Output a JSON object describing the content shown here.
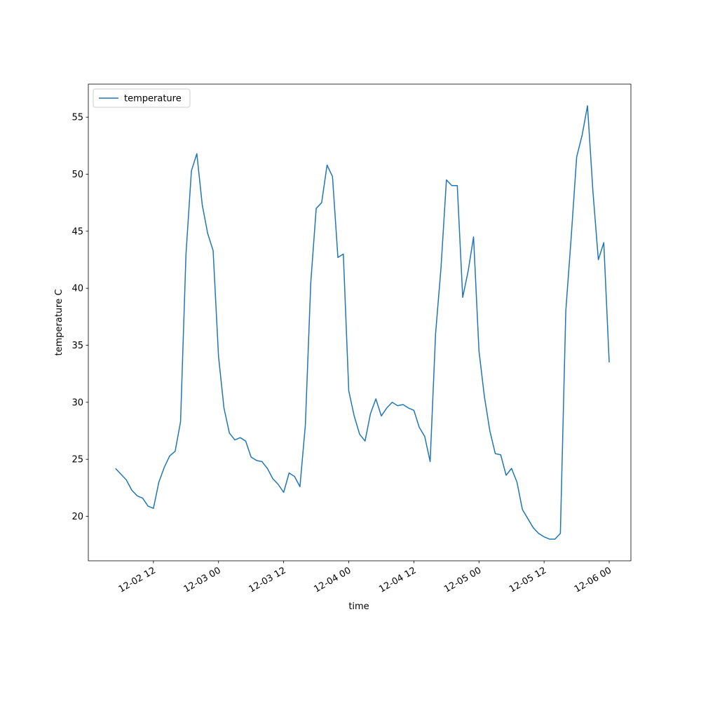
{
  "chart_data": {
    "type": "line",
    "x_label": "time",
    "y_label": "temperature C",
    "x": [
      "12-02 05",
      "12-02 06",
      "12-02 07",
      "12-02 08",
      "12-02 09",
      "12-02 10",
      "12-02 11",
      "12-02 12",
      "12-02 13",
      "12-02 14",
      "12-02 15",
      "12-02 16",
      "12-02 17",
      "12-02 18",
      "12-02 19",
      "12-02 20",
      "12-02 21",
      "12-02 22",
      "12-02 23",
      "12-03 00",
      "12-03 01",
      "12-03 02",
      "12-03 03",
      "12-03 04",
      "12-03 05",
      "12-03 06",
      "12-03 07",
      "12-03 08",
      "12-03 09",
      "12-03 10",
      "12-03 11",
      "12-03 12",
      "12-03 13",
      "12-03 14",
      "12-03 15",
      "12-03 16",
      "12-03 17",
      "12-03 18",
      "12-03 19",
      "12-03 20",
      "12-03 21",
      "12-03 22",
      "12-03 23",
      "12-04 00",
      "12-04 01",
      "12-04 02",
      "12-04 03",
      "12-04 04",
      "12-04 05",
      "12-04 06",
      "12-04 07",
      "12-04 08",
      "12-04 09",
      "12-04 10",
      "12-04 11",
      "12-04 12",
      "12-04 13",
      "12-04 14",
      "12-04 15",
      "12-04 16",
      "12-04 17",
      "12-04 18",
      "12-04 19",
      "12-04 20",
      "12-04 21",
      "12-04 22",
      "12-04 23",
      "12-05 00",
      "12-05 01",
      "12-05 02",
      "12-05 03",
      "12-05 04",
      "12-05 05",
      "12-05 06",
      "12-05 07",
      "12-05 08",
      "12-05 09",
      "12-05 10",
      "12-05 11",
      "12-05 12",
      "12-05 13",
      "12-05 14",
      "12-05 15",
      "12-05 16",
      "12-05 17",
      "12-05 18",
      "12-05 19",
      "12-05 20",
      "12-05 21",
      "12-05 22",
      "12-05 23",
      "12-06 00"
    ],
    "series": [
      {
        "name": "temperature",
        "color": "#1f77b4",
        "values": [
          24.2,
          23.7,
          23.2,
          22.3,
          21.8,
          21.6,
          20.9,
          20.7,
          23.0,
          24.3,
          25.3,
          25.7,
          28.3,
          43.0,
          50.3,
          51.8,
          47.3,
          44.8,
          43.3,
          34.0,
          29.5,
          27.3,
          26.7,
          26.9,
          26.6,
          25.2,
          24.9,
          24.8,
          24.2,
          23.3,
          22.8,
          22.1,
          23.8,
          23.5,
          22.6,
          28.0,
          40.5,
          47.0,
          47.5,
          50.8,
          49.8,
          42.7,
          43.0,
          31.0,
          28.8,
          27.2,
          26.6,
          29.0,
          30.3,
          28.8,
          29.5,
          30.0,
          29.7,
          29.8,
          29.5,
          29.3,
          27.8,
          27.0,
          24.8,
          36.0,
          41.8,
          49.5,
          49.0,
          49.0,
          39.2,
          41.5,
          44.5,
          34.5,
          30.5,
          27.5,
          25.5,
          25.4,
          23.6,
          24.2,
          23.0,
          20.6,
          19.8,
          19.0,
          18.5,
          18.2,
          18.0,
          18.0,
          18.5,
          38.0,
          44.5,
          51.5,
          53.4,
          56.0,
          48.5,
          42.5,
          44.0,
          33.5
        ]
      }
    ],
    "xlim": [
      "12-02 00",
      "12-06 04"
    ],
    "xticks": [
      "12-02 12",
      "12-03 00",
      "12-03 12",
      "12-04 00",
      "12-04 12",
      "12-05 00",
      "12-05 12",
      "12-06 00"
    ],
    "ylim": [
      16.1,
      57.9
    ],
    "yticks": [
      20,
      25,
      30,
      35,
      40,
      45,
      50,
      55
    ],
    "grid": false,
    "legend": "upper left"
  }
}
